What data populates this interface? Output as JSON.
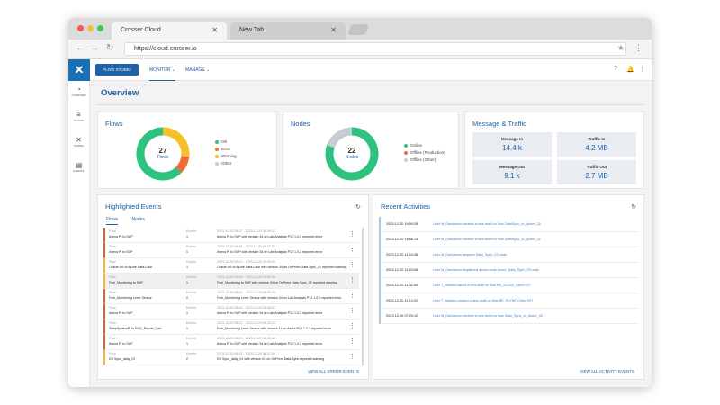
{
  "browser": {
    "tabs": [
      {
        "label": "Crosser Cloud"
      },
      {
        "label": "New Tab"
      }
    ],
    "url": "https://cloud.crosser.io"
  },
  "sidebar": {
    "items": [
      {
        "label": "OVERVIEW",
        "icon": "gauge-icon"
      },
      {
        "label": "FLOWS",
        "icon": "flows-icon"
      },
      {
        "label": "NODES",
        "icon": "nodes-icon"
      },
      {
        "label": "EVENTS",
        "icon": "events-icon"
      }
    ]
  },
  "topnav": {
    "flow_studio": "FLOW STUDIO",
    "monitor": "MONITOR",
    "manage": "MANAGE"
  },
  "page": {
    "title": "Overview"
  },
  "flows": {
    "title": "Flows",
    "count": "27",
    "count_label": "Flows",
    "legend": [
      "OK",
      "Error",
      "Warning",
      "Other"
    ]
  },
  "nodes": {
    "title": "Nodes",
    "count": "22",
    "count_label": "Nodes",
    "legend": [
      "Online",
      "Offline (Production)",
      "Offline (Other)"
    ]
  },
  "traffic": {
    "title": "Message & Traffic",
    "metrics": [
      {
        "label": "Message In",
        "value": "14.4 k"
      },
      {
        "label": "Traffic In",
        "value": "4.2 MB"
      },
      {
        "label": "Message Out",
        "value": "9.1 k"
      },
      {
        "label": "Traffic Out",
        "value": "2.7 MB"
      }
    ]
  },
  "events": {
    "title": "Highlighted Events",
    "tabs": [
      "Flows",
      "Nodes"
    ],
    "view_all": "VIEW ALL ERROR EVENTS",
    "col1": "Flow",
    "col2": "Events",
    "rows": [
      {
        "flow": "Aveva PI to SAP",
        "count": "1",
        "time": "2023-12-20 09:37 - 2023-12-20 09:39:22",
        "msg": "Aveva PI to SAP with version 34 on Lab Analysis P12 1.0.2 reported error",
        "color": "#e05a3a",
        "hl": false
      },
      {
        "flow": "Aveva PI to SAP",
        "count": "1",
        "time": "2023-12-20 09:34 - 2023-12-20 09:37:21",
        "msg": "Aveva PI to SAP with version 34 on Lab Analysis P12 1.0.2 reported error",
        "color": "#e05a3a",
        "hl": false
      },
      {
        "flow": "Oracle DB to Azure Data Lake",
        "count": "1",
        "time": "2023-12-20 09:21 - 2023-12-20 09:26:50",
        "msg": "Oracle DB to Azure Data Lake with version 34 on OnPrem Data Sync_01 reported warning",
        "color": "#f2b82c",
        "hl": false
      },
      {
        "flow": "Fuel_Monitoring to SAP",
        "count": "1",
        "time": "2023-12-20 09:06 - 2023-12-20 09:09:06",
        "msg": "Fuel_Monitoring to SAP with version 34 on OnPrem Data Sync_02 reported warning",
        "color": "#f2b82c",
        "hl": true
      },
      {
        "flow": "Fuel_Monitoring Level Sensor",
        "count": "2",
        "time": "2023-12-20 08:51 - 2023-12-20 08:56:03",
        "msg": "Fuel_Monitoring Level Sensor with version 34 on Lab Analysis P12 1.0.2 reported error",
        "color": "#e05a3a",
        "hl": false
      },
      {
        "flow": "Aveva PI to SAP",
        "count": "1",
        "time": "2023-12-20 08:44 - 2023-12-20 08:48:51",
        "msg": "Aveva PI to SAP with version 34 on Lab Analysis P12 1.0.2 reported error",
        "color": "#e05a3a",
        "hl": false
      },
      {
        "flow": "TempSystemPI to ESG_Report_Calc",
        "count": "1",
        "time": "2023-12-20 08:31 - 2023-12-20 08:35:33",
        "msg": "Fuel_Monitoring Level Sensor with version 11 on Azure P12 1.0.2 reported error",
        "color": "#e05a3a",
        "hl": false
      },
      {
        "flow": "Aveva PI to SAP",
        "count": "1",
        "time": "2023-12-20 08:23 - 2023-12-20 08:26:45",
        "msg": "Aveva PI to SAP with version 34 on Lab Analysis P12 1.0.2 reported error",
        "color": "#e05a3a",
        "hl": false
      },
      {
        "flow": "DB Sync_daily_01",
        "count": "2",
        "time": "2023-12-20 08:02 - 2023-12-20 08:07:04",
        "msg": "DB Sync_daily_01 with version 03 on OnPrem Data Sync reported warning",
        "color": "#f2b82c",
        "hl": false
      }
    ]
  },
  "activities": {
    "title": "Recent Activities",
    "view_all": "VIEW ALL ACTIVITY EVENTS",
    "rows": [
      {
        "time": "2023-12-20 16:59:28",
        "desc": "User M_Davidsson created a new draft on flow DataSync_to_Azure_02"
      },
      {
        "time": "2023-12-20 16:56:13",
        "desc": "User M_Davidsson created a new draft on flow DataSync_to_Azure_02"
      },
      {
        "time": "2023-12-20 11:44:48",
        "desc": "User M_Davidsson stopped Data_Sync_03 node"
      },
      {
        "time": "2023-12-20 11:40:08",
        "desc": "User M_Davidsson registered a new node Azure_Data_Sync_03 node"
      },
      {
        "time": "2023-12-20 11:32:59",
        "desc": "User T_Martins saved a new draft on flow BE_SCOM_Client 007"
      },
      {
        "time": "2023-12-20 11:10:02",
        "desc": "User T_Martins created a new draft on flow BE_SCOM_Client 007"
      },
      {
        "time": "2023-12-19 07:20:12",
        "desc": "User M_Davidsson created a new draft on flow Data_Sync_to_Azure_02"
      }
    ]
  },
  "colors": {
    "ok": "#2ec27e",
    "error": "#ee6b3b",
    "warning": "#f5c02a",
    "other": "#c8ccd4",
    "online": "#2ec27e",
    "offline_prod": "#ee6b3b",
    "offline_other": "#c8ccd4",
    "accent": "#1e62a8"
  }
}
